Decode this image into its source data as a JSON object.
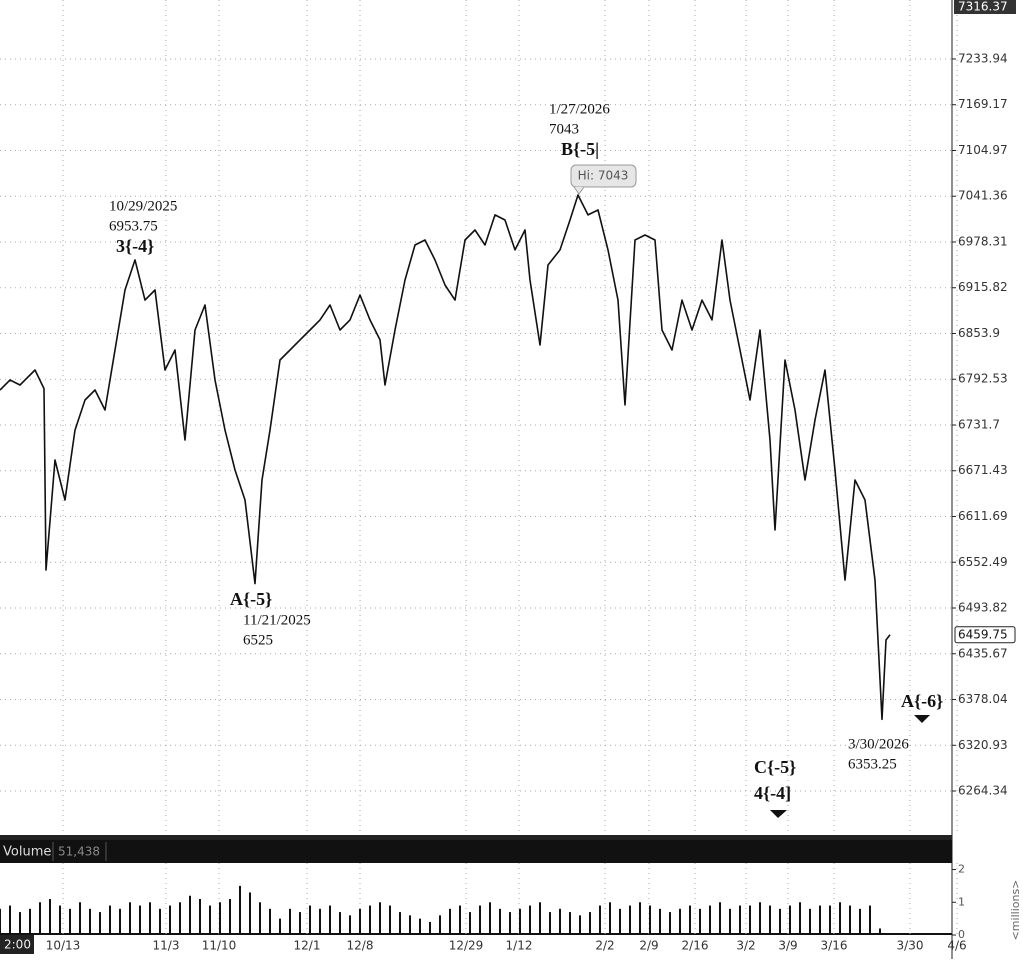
{
  "chart_data": [
    {
      "type": "line",
      "log_scale": true,
      "grid": true,
      "color": "#111111",
      "ylim": [
        6210.4,
        7318.3
      ],
      "yticks": [
        7233.94,
        7169.17,
        7104.97,
        7041.36,
        6978.31,
        6915.82,
        6853.9,
        6792.53,
        6731.7,
        6671.43,
        6611.69,
        6552.49,
        6493.82,
        6435.67,
        6378.04,
        6320.93,
        6264.34
      ],
      "xlim": [
        0,
        95.2
      ],
      "xticks": [
        {
          "value": 6.3,
          "label": "10/13"
        },
        {
          "value": 16.6,
          "label": "11/3"
        },
        {
          "value": 21.9,
          "label": "11/10"
        },
        {
          "value": 30.7,
          "label": "12/1"
        },
        {
          "value": 36,
          "label": "12/8"
        },
        {
          "value": 46.6,
          "label": "12/29"
        },
        {
          "value": 51.9,
          "label": "1/12"
        },
        {
          "value": 60.5,
          "label": "2/2"
        },
        {
          "value": 64.9,
          "label": "2/9"
        },
        {
          "value": 69.5,
          "label": "2/16"
        },
        {
          "value": 74.6,
          "label": "3/2"
        },
        {
          "value": 78.8,
          "label": "3/9"
        },
        {
          "value": 83.4,
          "label": "3/16"
        },
        {
          "value": 91,
          "label": "3/30"
        },
        {
          "value": 95.7,
          "label": "4/6"
        }
      ],
      "cursor_label": "2:00",
      "axis_high": 7316.37,
      "last_price": 6459.75,
      "x": [
        0,
        1,
        2,
        3.5,
        4.4,
        4.5,
        4.6,
        5.5,
        6.5,
        7.5,
        8.5,
        9.5,
        10.5,
        11.5,
        12.5,
        13.5,
        14.5,
        15.5,
        16.5,
        17.5,
        18.5,
        19.5,
        20.5,
        21.5,
        22.5,
        23.5,
        24.5,
        25.5,
        26.2,
        27,
        28,
        29,
        30,
        31,
        32,
        33,
        34,
        35,
        36,
        37,
        38,
        38.5,
        39.5,
        40.5,
        41.5,
        42.5,
        43.5,
        44.5,
        45.5,
        46.5,
        47.5,
        48.5,
        49.5,
        50.5,
        51.5,
        52.5,
        53,
        54,
        54.8,
        56,
        57,
        57.8,
        58.8,
        59.8,
        60.8,
        61.8,
        62.5,
        63.5,
        64.5,
        65.5,
        66.2,
        67.2,
        68.2,
        69.2,
        70.2,
        71.2,
        72.2,
        73,
        74,
        75,
        76,
        77,
        77.5,
        78.5,
        79.5,
        80.5,
        81.5,
        82.5,
        83.5,
        84.5,
        85.5,
        86.5,
        87.5,
        88.2,
        88.6,
        89
      ],
      "series": [
        {
          "name": "Price",
          "values": [
            6778.2,
            6791.5,
            6784.9,
            6804.9,
            6780,
            6659.3,
            6542.5,
            6685.5,
            6633.2,
            6725.0,
            6764.9,
            6778.2,
            6751.6,
            6831.7,
            6912.8,
            6953.75,
            6899.1,
            6912.8,
            6804.9,
            6831.7,
            6711.9,
            6858.6,
            6892.4,
            6791.5,
            6725.0,
            6672.4,
            6633.2,
            6525,
            6659.3,
            6725.0,
            6818.3,
            6831.7,
            6845.2,
            6858.6,
            6872.2,
            6892.4,
            6858.6,
            6872.2,
            6905.9,
            6872.2,
            6845.2,
            6784.9,
            6858.6,
            6926.3,
            6974.2,
            6981.0,
            6953.6,
            6919.6,
            6899.1,
            6981.0,
            6994.8,
            6974.2,
            7015.5,
            7008.6,
            6967.4,
            6994.8,
            6926.3,
            6838.4,
            6946.8,
            6967.4,
            7008.6,
            7043,
            7015.5,
            7022.3,
            6967.4,
            6899.1,
            6758.2,
            6981.0,
            6987.9,
            6981.0,
            6858.6,
            6831.7,
            6899.1,
            6858.6,
            6899.1,
            6872.2,
            6981.0,
            6899.1,
            6831.7,
            6764.9,
            6858.6,
            6711.9,
            6594.2,
            6818.3,
            6751.6,
            6659.3,
            6738.3,
            6804.9,
            6672.4,
            6529.6,
            6659.3,
            6633.2,
            6529.6,
            6353.25,
            6453.1,
            6459.75
          ]
        }
      ],
      "callout": "Hi: 7043",
      "annotations": [
        {
          "lines": [
            "10/29/2025",
            "6953.75",
            "3{-4}"
          ]
        },
        {
          "lines": [
            "A{-5}",
            "11/21/2025",
            "6525"
          ]
        },
        {
          "lines": [
            "1/27/2026",
            "7043",
            "B{-5|"
          ]
        },
        {
          "lines": [
            "A{-6}"
          ]
        },
        {
          "lines": [
            "3/30/2026",
            "6353.25"
          ]
        },
        {
          "lines": [
            "C{-5}",
            "4{-4]"
          ]
        }
      ]
    },
    {
      "type": "bar",
      "title": "Volume",
      "color": "#111111",
      "readout": {
        "value": 51438,
        "value_label": "51,438"
      },
      "y_label": "<millions>",
      "ylim": [
        0,
        2.2
      ],
      "yticks": [
        0,
        1,
        2
      ],
      "xlim": [
        0,
        95.2
      ],
      "x": [
        0,
        1,
        2,
        3,
        4,
        5,
        6,
        7,
        8,
        9,
        10,
        11,
        12,
        13,
        14,
        15,
        16,
        17,
        18,
        19,
        20,
        21,
        22,
        23,
        24,
        25,
        26,
        27,
        28,
        29,
        30,
        31,
        32,
        33,
        34,
        35,
        36,
        37,
        38,
        39,
        40,
        41,
        42,
        43,
        44,
        45,
        46,
        47,
        48,
        49,
        50,
        51,
        52,
        53,
        54,
        55,
        56,
        57,
        58,
        59,
        60,
        61,
        62,
        63,
        64,
        65,
        66,
        67,
        68,
        69,
        70,
        71,
        72,
        73,
        74,
        75,
        76,
        77,
        78,
        79,
        80,
        81,
        82,
        83,
        84,
        85,
        86,
        87,
        88
      ],
      "values": [
        0.8,
        0.9,
        0.7,
        0.8,
        1.0,
        1.1,
        0.9,
        0.8,
        1.0,
        0.8,
        0.7,
        0.9,
        0.8,
        1.0,
        0.9,
        1.0,
        0.8,
        0.9,
        1.0,
        1.2,
        1.1,
        0.9,
        1.0,
        1.1,
        1.5,
        1.3,
        1.0,
        0.8,
        0.5,
        0.8,
        0.7,
        0.9,
        0.8,
        0.9,
        0.7,
        0.6,
        0.8,
        0.9,
        1.0,
        0.9,
        0.7,
        0.6,
        0.5,
        0.4,
        0.6,
        0.8,
        0.9,
        0.7,
        0.9,
        1.0,
        0.8,
        0.7,
        0.8,
        0.9,
        1.0,
        0.7,
        0.8,
        0.7,
        0.6,
        0.7,
        0.9,
        1.0,
        0.8,
        0.9,
        1.0,
        0.9,
        0.8,
        0.7,
        0.8,
        0.9,
        0.8,
        0.9,
        1.0,
        0.8,
        0.9,
        0.9,
        1.0,
        0.9,
        0.8,
        0.9,
        1.0,
        0.8,
        0.9,
        0.9,
        1.0,
        0.9,
        0.8,
        0.9,
        0.2
      ]
    }
  ]
}
